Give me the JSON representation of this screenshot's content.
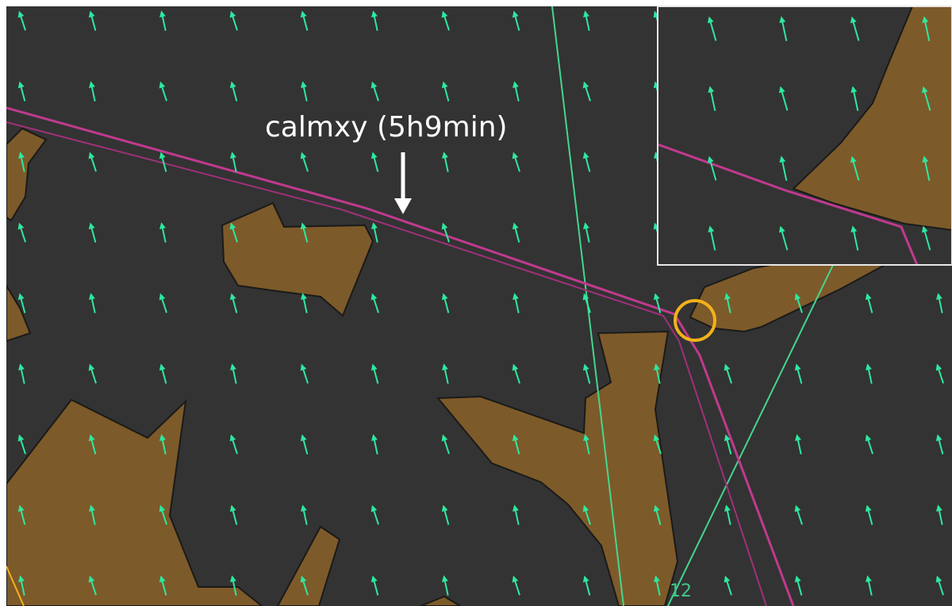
{
  "annotation": {
    "label": "calmxy (5h9min)"
  },
  "map": {
    "grid_label": "12"
  },
  "colors": {
    "sea": "#333333",
    "land": "#7d5a29",
    "land_outline": "#1a1a1a",
    "wind_arrow": "#2ee8a0",
    "route_primary": "#c03a8e",
    "route_secondary": "#a0307a",
    "grid_line": "#45d68f",
    "highlight_circle": "#f2b21a",
    "inset_border": "#e8e8e8",
    "annotation_text": "#ffffff"
  },
  "icons": {
    "wind": "wind-arrow-icon",
    "pointer": "down-arrow-icon",
    "highlight": "highlight-circle-icon"
  }
}
